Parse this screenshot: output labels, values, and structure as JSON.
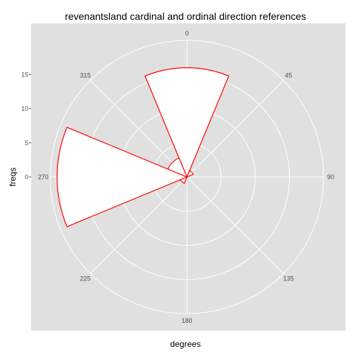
{
  "chart_data": {
    "type": "polar-bar",
    "title": "revenantsland cardinal and ordinal direction references",
    "xlabel": "degrees",
    "ylabel": "freqs",
    "angle_ticks": [
      "0",
      "45",
      "90",
      "135",
      "180",
      "225",
      "270",
      "315"
    ],
    "radial_ticks": [
      "0",
      "5",
      "10",
      "15"
    ],
    "categories": [
      "0",
      "45",
      "90",
      "135",
      "180",
      "225",
      "270",
      "315"
    ],
    "values": [
      16,
      1,
      0,
      0,
      0,
      1,
      19,
      3
    ],
    "bar_width_degrees": 45,
    "radial_offset": 0,
    "rlim": [
      0,
      20
    ],
    "grid": true,
    "colors": {
      "panel_background": "#e0e0e0",
      "grid_line": "#ffffff",
      "bar_fill": "#ffffff",
      "bar_stroke": "#ff0000"
    }
  }
}
